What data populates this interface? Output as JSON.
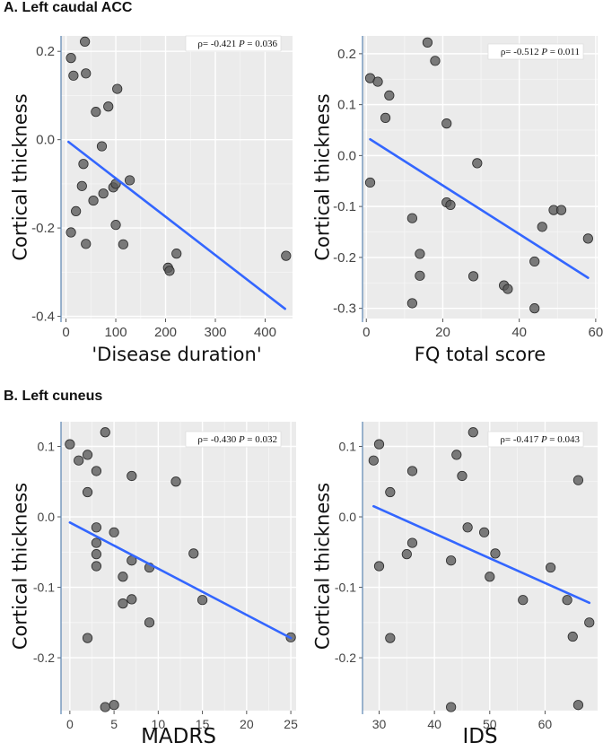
{
  "sections": {
    "a_title": "A. Left caudal ACC",
    "b_title": "B. Left cuneus"
  },
  "chart_data": [
    {
      "type": "scatter",
      "xlabel": "'Disease duration'",
      "ylabel": "Cortical thickness",
      "xlim": [
        -10,
        455
      ],
      "ylim": [
        -0.405,
        0.235
      ],
      "xticks": [
        0,
        100,
        200,
        300,
        400
      ],
      "yticks": [
        -0.4,
        -0.2,
        0.0,
        0.2
      ],
      "ytick_labels": [
        "-0.4",
        "-0.2",
        "0.0",
        "0.2"
      ],
      "stat": {
        "rho": "ρ= -0.421",
        "p_label": "P",
        "p_value": "= 0.036"
      },
      "fit": {
        "x": [
          5,
          440
        ],
        "y": [
          -0.005,
          -0.383
        ]
      },
      "points": [
        [
          10,
          0.185
        ],
        [
          15,
          0.145
        ],
        [
          38,
          0.222
        ],
        [
          40,
          0.15
        ],
        [
          60,
          0.063
        ],
        [
          85,
          0.075
        ],
        [
          103,
          0.115
        ],
        [
          72,
          -0.015
        ],
        [
          35,
          -0.055
        ],
        [
          20,
          -0.162
        ],
        [
          10,
          -0.21
        ],
        [
          32,
          -0.105
        ],
        [
          55,
          -0.138
        ],
        [
          75,
          -0.122
        ],
        [
          95,
          -0.108
        ],
        [
          100,
          -0.1
        ],
        [
          128,
          -0.092
        ],
        [
          100,
          -0.193
        ],
        [
          40,
          -0.236
        ],
        [
          115,
          -0.237
        ],
        [
          205,
          -0.29
        ],
        [
          208,
          -0.297
        ],
        [
          222,
          -0.258
        ],
        [
          442,
          -0.263
        ]
      ]
    },
    {
      "type": "scatter",
      "xlabel": "FQ total score",
      "ylabel": "Cortical thickness",
      "xlim": [
        -1,
        60.5
      ],
      "ylim": [
        -0.32,
        0.235
      ],
      "xticks": [
        0,
        20,
        40,
        60
      ],
      "yticks": [
        -0.3,
        -0.2,
        -0.1,
        0.0,
        0.1,
        0.2
      ],
      "ytick_labels": [
        "-0.3",
        "-0.2",
        "-0.1",
        "0.0",
        "0.1",
        "0.2"
      ],
      "stat": {
        "rho": "ρ= -0.512",
        "p_label": "P",
        "p_value": "= 0.011"
      },
      "fit": {
        "x": [
          1,
          58
        ],
        "y": [
          0.032,
          -0.24
        ]
      },
      "points": [
        [
          1,
          0.152
        ],
        [
          3,
          0.145
        ],
        [
          6,
          0.118
        ],
        [
          5,
          0.074
        ],
        [
          16,
          0.222
        ],
        [
          18,
          0.186
        ],
        [
          21,
          0.063
        ],
        [
          29,
          -0.015
        ],
        [
          1,
          -0.053
        ],
        [
          21,
          -0.092
        ],
        [
          22,
          -0.097
        ],
        [
          12,
          -0.123
        ],
        [
          14,
          -0.193
        ],
        [
          14,
          -0.236
        ],
        [
          12,
          -0.29
        ],
        [
          28,
          -0.237
        ],
        [
          36,
          -0.255
        ],
        [
          37,
          -0.262
        ],
        [
          44,
          -0.208
        ],
        [
          46,
          -0.14
        ],
        [
          49,
          -0.107
        ],
        [
          51,
          -0.107
        ],
        [
          58,
          -0.163
        ],
        [
          44,
          -0.3
        ]
      ]
    },
    {
      "type": "scatter",
      "xlabel": "MADRS",
      "ylabel": "Cortical thickness",
      "xlim": [
        -1,
        25.6
      ],
      "ylim": [
        -0.275,
        0.135
      ],
      "xticks": [
        0,
        5,
        10,
        15,
        20,
        25
      ],
      "yticks": [
        -0.2,
        -0.1,
        0.0,
        0.1
      ],
      "ytick_labels": [
        "-0.2",
        "-0.1",
        "0.0",
        "0.1"
      ],
      "stat": {
        "rho": "ρ= -0.430",
        "p_label": "P",
        "p_value": "= 0.032"
      },
      "fit": {
        "x": [
          0,
          25
        ],
        "y": [
          -0.008,
          -0.172
        ]
      },
      "points": [
        [
          0,
          0.103
        ],
        [
          1,
          0.08
        ],
        [
          2,
          0.088
        ],
        [
          4,
          0.12
        ],
        [
          3,
          0.065
        ],
        [
          2,
          0.035
        ],
        [
          3,
          -0.015
        ],
        [
          7,
          0.058
        ],
        [
          12,
          0.05
        ],
        [
          3,
          -0.037
        ],
        [
          5,
          -0.022
        ],
        [
          3,
          -0.053
        ],
        [
          3,
          -0.07
        ],
        [
          6,
          -0.085
        ],
        [
          7,
          -0.062
        ],
        [
          9,
          -0.072
        ],
        [
          14,
          -0.052
        ],
        [
          6,
          -0.123
        ],
        [
          7,
          -0.117
        ],
        [
          15,
          -0.118
        ],
        [
          9,
          -0.15
        ],
        [
          2,
          -0.172
        ],
        [
          4,
          -0.27
        ],
        [
          5,
          -0.267
        ],
        [
          25,
          -0.171
        ]
      ]
    },
    {
      "type": "scatter",
      "xlabel": "IDS",
      "ylabel": "Cortical thickness",
      "xlim": [
        27,
        69.5
      ],
      "ylim": [
        -0.275,
        0.135
      ],
      "xticks": [
        30,
        40,
        50,
        60
      ],
      "yticks": [
        -0.2,
        -0.1,
        0.0,
        0.1
      ],
      "ytick_labels": [
        "-0.2",
        "-0.1",
        "0.0",
        "0.1"
      ],
      "stat": {
        "rho": "ρ= -0.417",
        "p_label": "P",
        "p_value": "= 0.043"
      },
      "fit": {
        "x": [
          29,
          68
        ],
        "y": [
          0.015,
          -0.122
        ]
      },
      "points": [
        [
          29,
          0.08
        ],
        [
          30,
          0.103
        ],
        [
          32,
          0.035
        ],
        [
          36,
          0.065
        ],
        [
          44,
          0.088
        ],
        [
          45,
          0.058
        ],
        [
          47,
          0.12
        ],
        [
          30,
          -0.07
        ],
        [
          36,
          -0.037
        ],
        [
          35,
          -0.053
        ],
        [
          46,
          -0.015
        ],
        [
          49,
          -0.022
        ],
        [
          51,
          -0.052
        ],
        [
          50,
          -0.085
        ],
        [
          43,
          -0.062
        ],
        [
          56,
          -0.118
        ],
        [
          61,
          -0.072
        ],
        [
          64,
          -0.118
        ],
        [
          66,
          0.052
        ],
        [
          68,
          -0.15
        ],
        [
          65,
          -0.17
        ],
        [
          32,
          -0.172
        ],
        [
          43,
          -0.27
        ],
        [
          66,
          -0.267
        ]
      ]
    }
  ]
}
